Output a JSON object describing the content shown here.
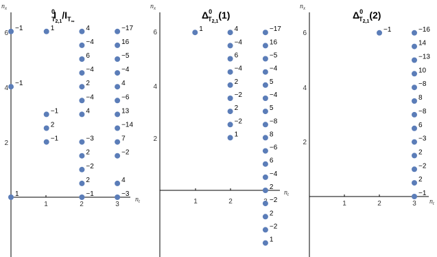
{
  "chart_data": [
    {
      "type": "scatter",
      "title": "I^0_{T2,1}/I_{T∞}",
      "xlabel": "n_t",
      "ylabel": "n_x",
      "xticks": [
        1,
        2,
        3
      ],
      "yticks": [
        2,
        4,
        6
      ],
      "xlim": [
        0,
        3.4
      ],
      "ylim": [
        -2.2,
        6.9
      ],
      "color": "#5b7db8",
      "points": [
        {
          "x": 0,
          "y": 6,
          "label": "−1"
        },
        {
          "x": 0,
          "y": 4,
          "label": "−1"
        },
        {
          "x": 0,
          "y": 0,
          "label": "1"
        },
        {
          "x": 1,
          "y": 6,
          "label": "1"
        },
        {
          "x": 1,
          "y": 3,
          "label": "−1"
        },
        {
          "x": 1,
          "y": 2.5,
          "label": "2"
        },
        {
          "x": 1,
          "y": 2,
          "label": "−1"
        },
        {
          "x": 2,
          "y": 6,
          "label": "4"
        },
        {
          "x": 2,
          "y": 5.5,
          "label": "−4"
        },
        {
          "x": 2,
          "y": 5,
          "label": "6"
        },
        {
          "x": 2,
          "y": 4.5,
          "label": "−4"
        },
        {
          "x": 2,
          "y": 4,
          "label": "2"
        },
        {
          "x": 2,
          "y": 3.5,
          "label": "−4"
        },
        {
          "x": 2,
          "y": 3,
          "label": "4"
        },
        {
          "x": 2,
          "y": 2,
          "label": "−3"
        },
        {
          "x": 2,
          "y": 1.5,
          "label": "2"
        },
        {
          "x": 2,
          "y": 1,
          "label": "−2"
        },
        {
          "x": 2,
          "y": 0.5,
          "label": "2"
        },
        {
          "x": 2,
          "y": 0,
          "label": "−1"
        },
        {
          "x": 3,
          "y": 6,
          "label": "−17"
        },
        {
          "x": 3,
          "y": 5.5,
          "label": "16"
        },
        {
          "x": 3,
          "y": 5,
          "label": "−5"
        },
        {
          "x": 3,
          "y": 4.5,
          "label": "−4"
        },
        {
          "x": 3,
          "y": 4,
          "label": "4"
        },
        {
          "x": 3,
          "y": 3.5,
          "label": "−6"
        },
        {
          "x": 3,
          "y": 3,
          "label": "13"
        },
        {
          "x": 3,
          "y": 2.5,
          "label": "−14"
        },
        {
          "x": 3,
          "y": 2,
          "label": "7"
        },
        {
          "x": 3,
          "y": 1.5,
          "label": "−2"
        },
        {
          "x": 3,
          "y": 0.5,
          "label": "4"
        },
        {
          "x": 3,
          "y": 0,
          "label": "−3"
        }
      ]
    },
    {
      "type": "scatter",
      "title": "Δ^0_{T2,1}(1)",
      "xlabel": "n_t",
      "ylabel": "n_x",
      "xticks": [
        1,
        2,
        3
      ],
      "yticks": [
        2,
        4,
        6
      ],
      "xlim": [
        -0.15,
        3.4
      ],
      "ylim": [
        -2.2,
        6.9
      ],
      "color": "#5b7db8",
      "points": [
        {
          "x": 1,
          "y": 6,
          "label": "1"
        },
        {
          "x": 2,
          "y": 6,
          "label": "4"
        },
        {
          "x": 2,
          "y": 5.5,
          "label": "−4"
        },
        {
          "x": 2,
          "y": 5,
          "label": "6"
        },
        {
          "x": 2,
          "y": 4.5,
          "label": "−4"
        },
        {
          "x": 2,
          "y": 4,
          "label": "2"
        },
        {
          "x": 2,
          "y": 3.5,
          "label": "−2"
        },
        {
          "x": 2,
          "y": 3,
          "label": "2"
        },
        {
          "x": 2,
          "y": 2.5,
          "label": "−2"
        },
        {
          "x": 2,
          "y": 2,
          "label": "1"
        },
        {
          "x": 3,
          "y": 6,
          "label": "−17"
        },
        {
          "x": 3,
          "y": 5.5,
          "label": "16"
        },
        {
          "x": 3,
          "y": 5,
          "label": "−5"
        },
        {
          "x": 3,
          "y": 4.5,
          "label": "−4"
        },
        {
          "x": 3,
          "y": 4,
          "label": "5"
        },
        {
          "x": 3,
          "y": 3.5,
          "label": "−4"
        },
        {
          "x": 3,
          "y": 3,
          "label": "5"
        },
        {
          "x": 3,
          "y": 2.5,
          "label": "−8"
        },
        {
          "x": 3,
          "y": 2,
          "label": "8"
        },
        {
          "x": 3,
          "y": 1.5,
          "label": "−6"
        },
        {
          "x": 3,
          "y": 1,
          "label": "6"
        },
        {
          "x": 3,
          "y": 0.5,
          "label": "−4"
        },
        {
          "x": 3,
          "y": 0,
          "label": "2"
        },
        {
          "x": 3,
          "y": -0.5,
          "label": "−2"
        },
        {
          "x": 3,
          "y": -1,
          "label": "2"
        },
        {
          "x": 3,
          "y": -1.5,
          "label": "−2"
        },
        {
          "x": 3,
          "y": -2,
          "label": "1"
        }
      ]
    },
    {
      "type": "scatter",
      "title": "Δ^0_{T2,1}(2)",
      "xlabel": "n_t",
      "ylabel": "n_x",
      "xticks": [
        1,
        2,
        3
      ],
      "yticks": [
        2,
        4,
        6
      ],
      "xlim": [
        -0.15,
        3.4
      ],
      "ylim": [
        -2.2,
        6.9
      ],
      "color": "#5b7db8",
      "points": [
        {
          "x": 2,
          "y": 6,
          "label": "−1"
        },
        {
          "x": 3,
          "y": 6,
          "label": "−16"
        },
        {
          "x": 3,
          "y": 5.5,
          "label": "14"
        },
        {
          "x": 3,
          "y": 5,
          "label": "−13"
        },
        {
          "x": 3,
          "y": 4.5,
          "label": "10"
        },
        {
          "x": 3,
          "y": 4,
          "label": "−8"
        },
        {
          "x": 3,
          "y": 3.5,
          "label": "8"
        },
        {
          "x": 3,
          "y": 3,
          "label": "−8"
        },
        {
          "x": 3,
          "y": 2.5,
          "label": "6"
        },
        {
          "x": 3,
          "y": 2,
          "label": "−3"
        },
        {
          "x": 3,
          "y": 1.5,
          "label": "2"
        },
        {
          "x": 3,
          "y": 1,
          "label": "−2"
        },
        {
          "x": 3,
          "y": 0.5,
          "label": "2"
        },
        {
          "x": 3,
          "y": 0,
          "label": "−1"
        }
      ]
    }
  ]
}
